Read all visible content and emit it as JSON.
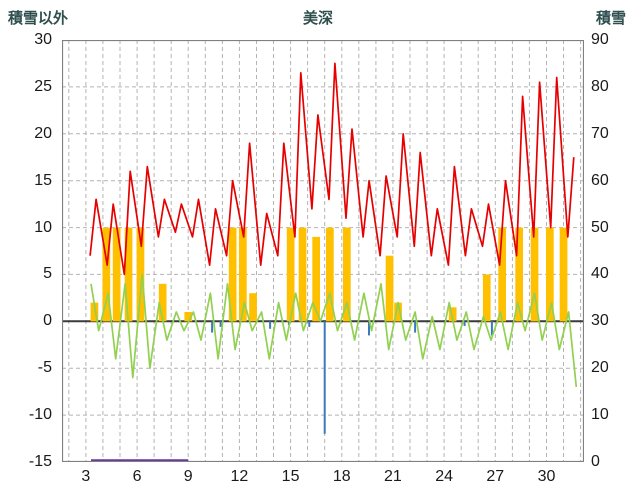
{
  "chart_data": {
    "type": "line",
    "title": "美深",
    "left_axis": {
      "label": "積雪以外",
      "min": -15,
      "max": 30,
      "ticks": [
        30,
        25,
        20,
        15,
        10,
        5,
        0,
        -5,
        -10,
        -15
      ]
    },
    "right_axis": {
      "label": "積雪",
      "min": 0,
      "max": 90,
      "ticks": [
        90,
        80,
        70,
        60,
        50,
        40,
        30,
        20,
        10,
        0
      ]
    },
    "x_axis": {
      "min": 1.6,
      "max": 32.2,
      "tick_labels": [
        3,
        6,
        9,
        12,
        15,
        18,
        21,
        24,
        27,
        30
      ],
      "grid_step": 1
    },
    "grid": {
      "color": "#b3b3b3",
      "zero_line_color": "#3a3a3a",
      "border_color": "#808080"
    },
    "series": [
      {
        "name": "temperature-red-line",
        "type": "diurnal-line",
        "color": "#e60000",
        "days": [
          3,
          4,
          5,
          6,
          7,
          8,
          9,
          10,
          11,
          12,
          13,
          14,
          15,
          16,
          17,
          18,
          19,
          20,
          21,
          22,
          23,
          24,
          25,
          26,
          27,
          28,
          29,
          30,
          31
        ],
        "daily_max": [
          13,
          12.5,
          16,
          16.5,
          13,
          12.5,
          13,
          12,
          15,
          19,
          11.5,
          19,
          26.5,
          22,
          27.5,
          20.5,
          15,
          15.5,
          20,
          18,
          12,
          16.5,
          12,
          12.5,
          15,
          24,
          25.5,
          26,
          17.5
        ],
        "daily_min": [
          7,
          6,
          5,
          8,
          9,
          9.5,
          9,
          6,
          7,
          9,
          6,
          7,
          9,
          12,
          13,
          11,
          9,
          7,
          9,
          8,
          7,
          6,
          7,
          8,
          6,
          7,
          9,
          10,
          9
        ]
      },
      {
        "name": "green-line",
        "type": "diurnal-line",
        "color": "#92d050",
        "days": [
          3,
          4,
          5,
          6,
          7,
          8,
          9,
          10,
          11,
          12,
          13,
          14,
          15,
          16,
          17,
          18,
          19,
          20,
          21,
          22,
          23,
          24,
          25,
          26,
          27,
          28,
          29,
          30,
          31
        ],
        "daily_max": [
          4,
          3,
          4,
          5,
          2,
          1,
          1,
          3,
          4,
          2,
          1,
          2,
          3,
          2,
          3,
          2,
          3,
          4,
          2,
          1,
          0.5,
          2,
          1,
          0.5,
          1,
          2,
          3,
          2,
          1
        ],
        "daily_min": [
          -1,
          -4,
          -6,
          -5,
          -2,
          -1,
          -2,
          -4,
          -3,
          -1,
          -4,
          -2,
          -1,
          0,
          -1,
          -2,
          -1,
          -3,
          -2,
          -4,
          -3,
          -2,
          -3,
          -2,
          -3,
          -1,
          -2,
          -3,
          -7
        ]
      },
      {
        "name": "sunshine-orange-bars",
        "type": "bar",
        "color": "#ffc000",
        "bar_width_days": 0.45,
        "points": [
          [
            3.5,
            2
          ],
          [
            4.2,
            10
          ],
          [
            4.8,
            10
          ],
          [
            5.5,
            10
          ],
          [
            6.2,
            10
          ],
          [
            7.5,
            4
          ],
          [
            9.0,
            1
          ],
          [
            11.6,
            10
          ],
          [
            12.2,
            10
          ],
          [
            12.8,
            3
          ],
          [
            15.0,
            10
          ],
          [
            15.7,
            10
          ],
          [
            16.5,
            9
          ],
          [
            17.3,
            10
          ],
          [
            18.3,
            10
          ],
          [
            20.8,
            7
          ],
          [
            21.3,
            2
          ],
          [
            24.5,
            1.5
          ],
          [
            26.5,
            5
          ],
          [
            27.4,
            10
          ],
          [
            28.4,
            10
          ],
          [
            29.3,
            10
          ],
          [
            30.2,
            10
          ],
          [
            31.0,
            10
          ]
        ]
      },
      {
        "name": "precipitation-blue-bars",
        "type": "bar",
        "color": "#3a7abf",
        "bar_width_days": 0.12,
        "points": [
          [
            10.4,
            -1.2
          ],
          [
            10.9,
            -0.6
          ],
          [
            13.8,
            -0.8
          ],
          [
            14.9,
            -0.4
          ],
          [
            16.1,
            -0.6
          ],
          [
            17.0,
            -12
          ],
          [
            19.6,
            -1.5
          ],
          [
            22.3,
            -1.2
          ],
          [
            25.2,
            -0.5
          ],
          [
            26.8,
            -1.5
          ]
        ]
      },
      {
        "name": "snow-depth-purple-line",
        "type": "flat-line",
        "color": "#6a33a0",
        "axis": "right",
        "value": 0,
        "start_day": 3.3,
        "end_day": 9.0
      }
    ]
  }
}
